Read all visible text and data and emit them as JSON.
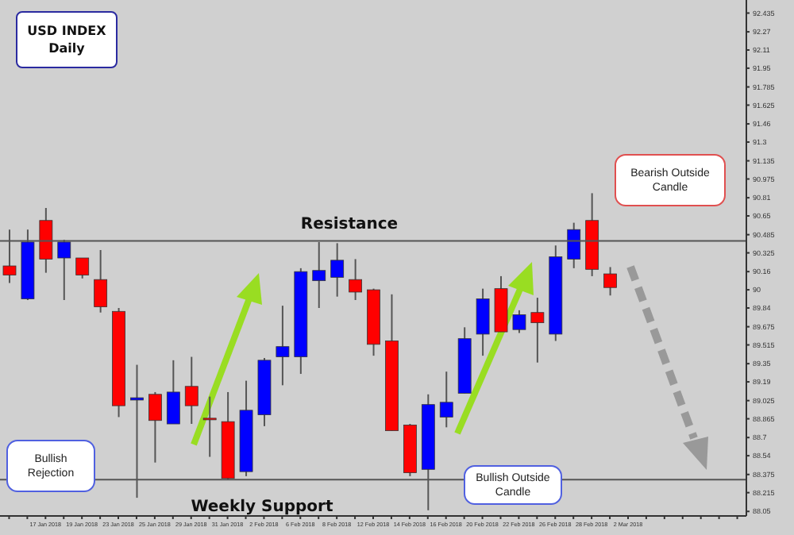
{
  "chart_data": {
    "type": "candlestick",
    "title": "USD INDEX Daily",
    "categories": [
      null,
      null,
      "17 Jan 2018",
      null,
      "19 Jan 2018",
      null,
      "23 Jan 2018",
      null,
      "25 Jan 2018",
      null,
      "29 Jan 2018",
      null,
      "31 Jan 2018",
      null,
      "2 Feb 2018",
      null,
      "6 Feb 2018",
      null,
      "8 Feb 2018",
      null,
      "12 Feb 2018",
      null,
      "14 Feb 2018",
      null,
      "16 Feb 2018",
      null,
      "20 Feb 2018",
      null,
      "22 Feb 2018",
      null,
      "26 Feb 2018",
      null,
      "28 Feb 2018",
      null,
      "2 Mar 2018",
      null,
      null,
      null,
      null,
      null,
      null
    ],
    "ohlc": [
      [
        90.21,
        90.53,
        90.06,
        90.13
      ],
      [
        89.92,
        90.53,
        89.91,
        90.42
      ],
      [
        90.61,
        90.72,
        90.15,
        90.27
      ],
      [
        90.28,
        90.44,
        89.91,
        90.42
      ],
      [
        90.28,
        90.28,
        90.1,
        90.13
      ],
      [
        90.09,
        90.35,
        89.8,
        89.85
      ],
      [
        89.81,
        89.84,
        88.88,
        88.98
      ],
      [
        89.03,
        89.34,
        88.17,
        89.05
      ],
      [
        89.08,
        89.1,
        88.48,
        88.85
      ],
      [
        88.82,
        89.38,
        88.82,
        89.1
      ],
      [
        89.15,
        89.41,
        88.82,
        88.98
      ],
      [
        88.87,
        89.06,
        88.53,
        88.86
      ],
      [
        88.84,
        89.1,
        88.33,
        88.34
      ],
      [
        88.4,
        89.2,
        88.36,
        88.94
      ],
      [
        88.9,
        89.4,
        88.8,
        89.38
      ],
      [
        89.41,
        89.86,
        89.16,
        89.5
      ],
      [
        89.41,
        90.19,
        89.26,
        90.16
      ],
      [
        90.08,
        90.42,
        89.84,
        90.17
      ],
      [
        90.11,
        90.41,
        89.94,
        90.26
      ],
      [
        90.09,
        90.27,
        89.91,
        89.98
      ],
      [
        90.0,
        90.01,
        89.42,
        89.52
      ],
      [
        89.55,
        89.96,
        88.76,
        88.76
      ],
      [
        88.81,
        88.82,
        88.36,
        88.39
      ],
      [
        88.42,
        89.08,
        88.06,
        88.99
      ],
      [
        88.88,
        89.28,
        88.79,
        89.01
      ],
      [
        89.09,
        89.67,
        89.09,
        89.57
      ],
      [
        89.61,
        90.01,
        89.42,
        89.92
      ],
      [
        90.01,
        90.12,
        89.63,
        89.63
      ],
      [
        89.65,
        89.82,
        89.62,
        89.78
      ],
      [
        89.8,
        89.93,
        89.36,
        89.71
      ],
      [
        89.61,
        90.39,
        89.55,
        90.29
      ],
      [
        90.27,
        90.59,
        90.19,
        90.53
      ],
      [
        90.61,
        90.85,
        90.12,
        90.18
      ],
      [
        90.14,
        90.2,
        89.95,
        90.02
      ],
      null,
      null,
      null,
      null,
      null,
      null,
      null
    ],
    "colors": [
      "#ff0000",
      "#0000ff",
      "#ff0000",
      "#0000ff",
      "#ff0000",
      "#ff0000",
      "#ff0000",
      "#0000ff",
      "#ff0000",
      "#0000ff",
      "#ff0000",
      "#ff0000",
      "#ff0000",
      "#0000ff",
      "#0000ff",
      "#0000ff",
      "#0000ff",
      "#0000ff",
      "#0000ff",
      "#ff0000",
      "#ff0000",
      "#ff0000",
      "#ff0000",
      "#0000ff",
      "#0000ff",
      "#0000ff",
      "#0000ff",
      "#ff0000",
      "#0000ff",
      "#ff0000",
      "#0000ff",
      "#0000ff",
      "#ff0000",
      "#ff0000",
      null,
      null,
      null,
      null,
      null,
      null,
      null
    ],
    "ylim": [
      88.01,
      92.55
    ],
    "yticks": [
      92.435,
      92.27,
      92.11,
      91.95,
      91.785,
      91.625,
      91.46,
      91.3,
      91.135,
      90.975,
      90.81,
      90.65,
      90.485,
      90.325,
      90.16,
      90.0,
      89.84,
      89.675,
      89.515,
      89.35,
      89.19,
      89.025,
      88.865,
      88.7,
      88.54,
      88.375,
      88.215,
      88.05
    ],
    "ref_lines": [
      {
        "axis": "y",
        "value": 90.43,
        "label": "Resistance",
        "color": "#555555"
      },
      {
        "axis": "y",
        "value": 88.33,
        "label": "Weekly Support",
        "color": "#555555"
      }
    ],
    "annotations": [
      "Bearish Outside Candle",
      "Bullish Rejection",
      "Bullish Outside Candle"
    ]
  }
}
